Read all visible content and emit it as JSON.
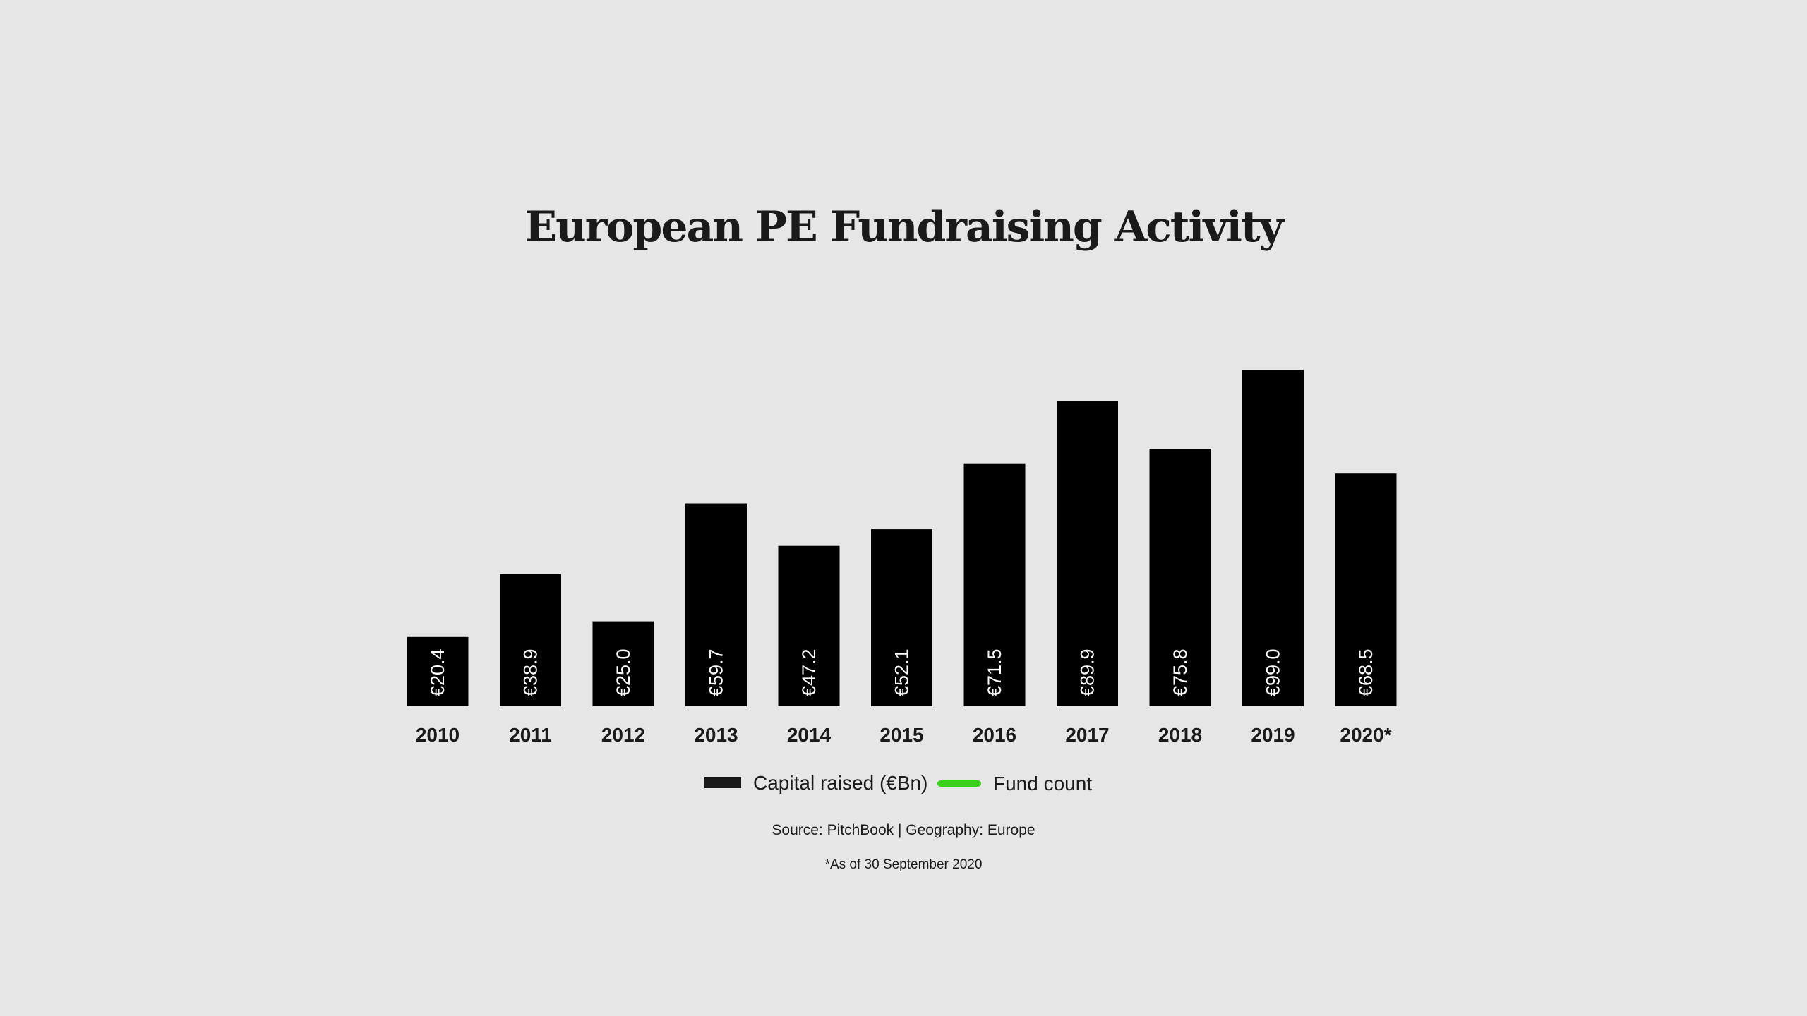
{
  "chart_data": {
    "type": "bar",
    "title": "European PE Fundraising Activity",
    "categories": [
      "2010",
      "2011",
      "2012",
      "2013",
      "2014",
      "2015",
      "2016",
      "2017",
      "2018",
      "2019",
      "2020*"
    ],
    "series": [
      {
        "name": "Capital raised (€Bn)",
        "values": [
          20.4,
          38.9,
          25.0,
          59.7,
          47.2,
          52.1,
          71.5,
          89.9,
          75.8,
          99.0,
          68.5
        ],
        "labels": [
          "€20.4",
          "€38.9",
          "€25.0",
          "€59.7",
          "€47.2",
          "€52.1",
          "€71.5",
          "€89.9",
          "€75.8",
          "€99.0",
          "€68.5"
        ],
        "color": "#000000"
      }
    ],
    "legend": [
      {
        "label": "Capital raised (€Bn)",
        "color": "#1a1a1a"
      },
      {
        "label": "Fund count",
        "color": "#3ad11a"
      }
    ],
    "legend_position": "bottom",
    "source": "Source: PitchBook | Geography: Europe",
    "footnote": "*As of 30 September 2020",
    "grid": false,
    "ylim": [
      0,
      100
    ]
  },
  "colors": {
    "background": "#e6e6e6",
    "bar": "#000000",
    "bar_label": "#ffffff",
    "text": "#1a1a1a",
    "fund_count": "#3ad11a"
  }
}
